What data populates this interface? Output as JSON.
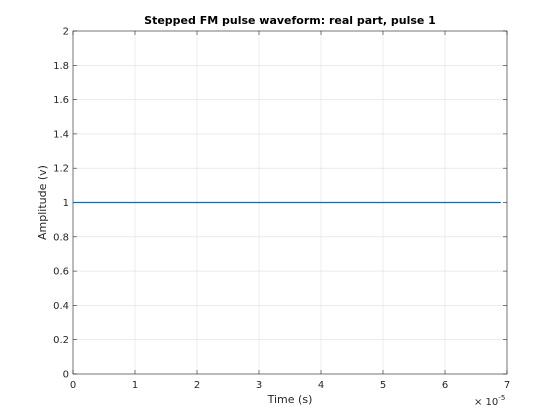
{
  "chart_data": {
    "type": "line",
    "title": "Stepped FM pulse waveform: real part, pulse 1",
    "xlabel": "Time (s)",
    "ylabel": "Amplitude (v)",
    "x_exponent_label": "× 10",
    "x_exponent_value": "-5",
    "xlim": [
      0,
      7
    ],
    "ylim": [
      0,
      2
    ],
    "x_ticks": [
      "0",
      "1",
      "2",
      "3",
      "4",
      "5",
      "6",
      "7"
    ],
    "y_ticks": [
      "0",
      "0.2",
      "0.4",
      "0.6",
      "0.8",
      "1",
      "1.2",
      "1.4",
      "1.6",
      "1.8",
      "2"
    ],
    "grid": true,
    "series": [
      {
        "color": "#0072BD",
        "x": [
          0,
          6.9
        ],
        "y": [
          1,
          1
        ]
      }
    ]
  }
}
